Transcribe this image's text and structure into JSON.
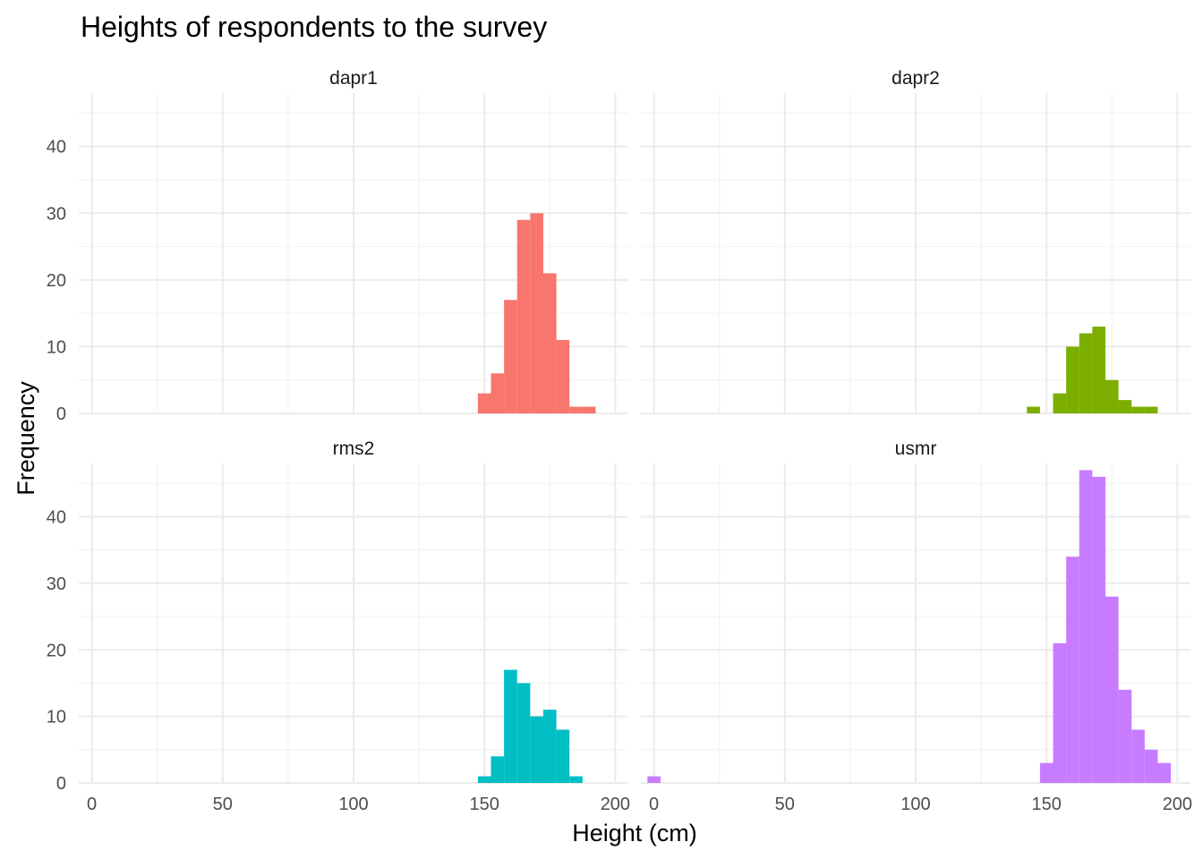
{
  "chart_data": {
    "type": "bar",
    "subtype": "faceted-histogram",
    "title": "Heights of respondents to the survey",
    "xlabel": "Height (cm)",
    "ylabel": "Frequency",
    "xlim": [
      -5,
      205
    ],
    "ylim": [
      0,
      48
    ],
    "x_ticks": [
      0,
      50,
      100,
      150,
      200
    ],
    "y_ticks": [
      0,
      10,
      20,
      30,
      40
    ],
    "grid": true,
    "legend": "none",
    "bin_width": 5,
    "facets": [
      {
        "name": "dapr1",
        "color": "#F8766D",
        "bins": [
          {
            "x": 150,
            "count": 3
          },
          {
            "x": 155,
            "count": 6
          },
          {
            "x": 160,
            "count": 17
          },
          {
            "x": 165,
            "count": 29
          },
          {
            "x": 170,
            "count": 30
          },
          {
            "x": 175,
            "count": 21
          },
          {
            "x": 180,
            "count": 11
          },
          {
            "x": 185,
            "count": 1
          },
          {
            "x": 190,
            "count": 1
          }
        ]
      },
      {
        "name": "dapr2",
        "color": "#7CAE00",
        "bins": [
          {
            "x": 145,
            "count": 1
          },
          {
            "x": 155,
            "count": 3
          },
          {
            "x": 160,
            "count": 10
          },
          {
            "x": 165,
            "count": 12
          },
          {
            "x": 170,
            "count": 13
          },
          {
            "x": 175,
            "count": 5
          },
          {
            "x": 180,
            "count": 2
          },
          {
            "x": 185,
            "count": 1
          },
          {
            "x": 190,
            "count": 1
          }
        ]
      },
      {
        "name": "rms2",
        "color": "#00BFC4",
        "bins": [
          {
            "x": 150,
            "count": 1
          },
          {
            "x": 155,
            "count": 4
          },
          {
            "x": 160,
            "count": 17
          },
          {
            "x": 165,
            "count": 15
          },
          {
            "x": 170,
            "count": 10
          },
          {
            "x": 175,
            "count": 11
          },
          {
            "x": 180,
            "count": 8
          },
          {
            "x": 185,
            "count": 1
          }
        ]
      },
      {
        "name": "usmr",
        "color": "#C77CFF",
        "bins": [
          {
            "x": 0,
            "count": 1
          },
          {
            "x": 150,
            "count": 3
          },
          {
            "x": 155,
            "count": 21
          },
          {
            "x": 160,
            "count": 34
          },
          {
            "x": 165,
            "count": 47
          },
          {
            "x": 170,
            "count": 46
          },
          {
            "x": 175,
            "count": 28
          },
          {
            "x": 180,
            "count": 14
          },
          {
            "x": 185,
            "count": 8
          },
          {
            "x": 190,
            "count": 5
          },
          {
            "x": 195,
            "count": 3
          }
        ]
      }
    ]
  }
}
